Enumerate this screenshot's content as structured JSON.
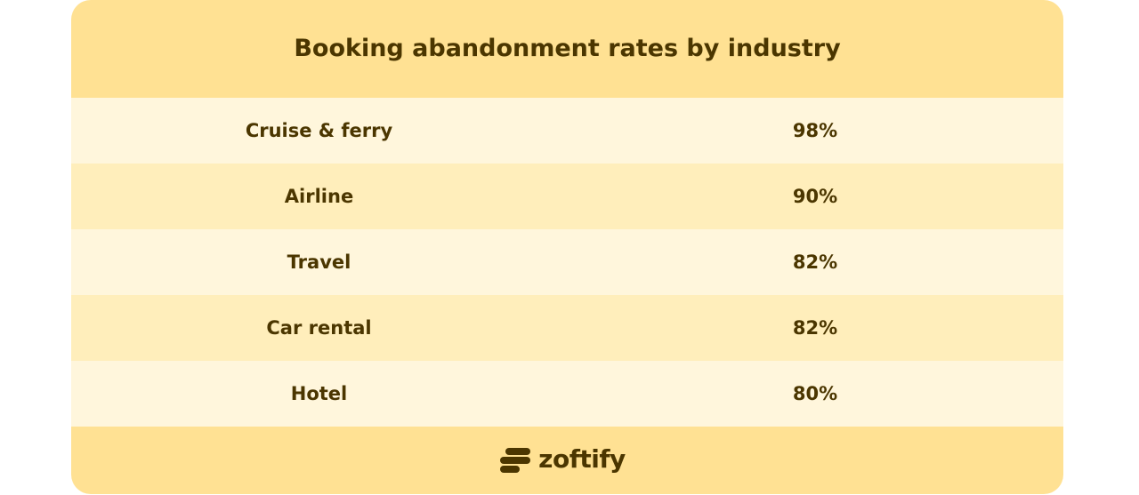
{
  "chart_data": {
    "type": "table",
    "title": "Booking abandonment rates by industry",
    "categories": [
      "Cruise & ferry",
      "Airline",
      "Travel",
      "Car rental",
      "Hotel"
    ],
    "values": [
      "98%",
      "90%",
      "82%",
      "82%",
      "80%"
    ]
  },
  "brand": {
    "name": "zoftify",
    "logo_icon": "zoftify-logo-icon"
  },
  "colors": {
    "header_bg": "#ffe193",
    "row_light": "#fff6dc",
    "row_dark": "#ffeebb",
    "text": "#4b3600"
  }
}
